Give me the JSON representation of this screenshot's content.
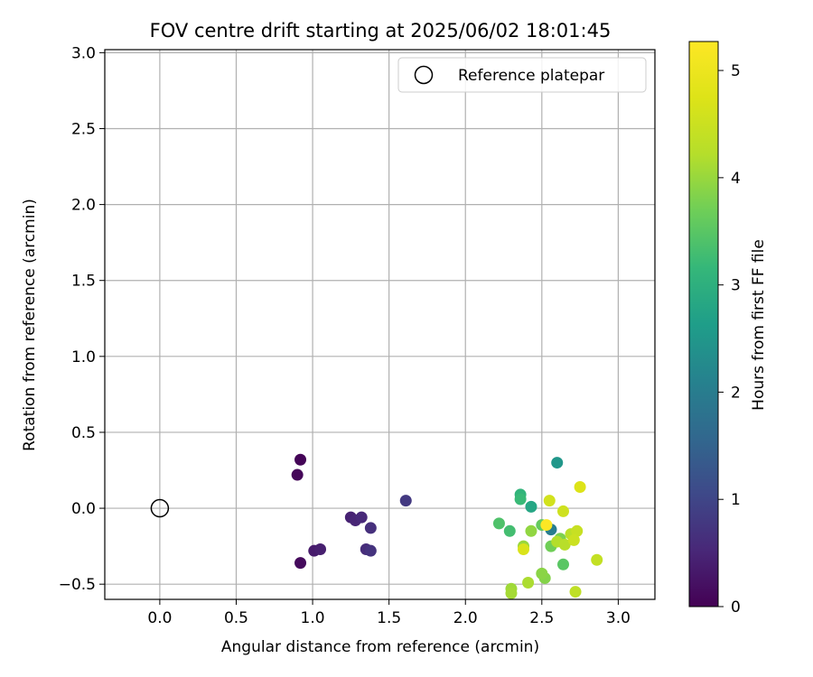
{
  "chart_data": {
    "type": "scatter",
    "title": "FOV centre drift starting at 2025/06/02 18:01:45",
    "xlabel": "Angular distance from reference (arcmin)",
    "ylabel": "Rotation from reference (arcmin)",
    "xlim": [
      -0.36,
      3.24
    ],
    "ylim": [
      -0.6,
      3.02
    ],
    "xticks": [
      "0.0",
      "0.5",
      "1.0",
      "1.5",
      "2.0",
      "2.5",
      "3.0"
    ],
    "yticks": [
      "−0.5",
      "0.0",
      "0.5",
      "1.0",
      "1.5",
      "2.0",
      "2.5",
      "3.0"
    ],
    "grid": true,
    "legend": {
      "placement": "upper-right",
      "label": "Reference platepar"
    },
    "reference_point": {
      "x": 0.0,
      "y": 0.0
    },
    "colorbar": {
      "label": "Hours from first FF file",
      "colormap": "viridis",
      "range": [
        0,
        5.27
      ],
      "ticks": [
        "0",
        "1",
        "2",
        "3",
        "4",
        "5"
      ]
    },
    "points": [
      {
        "x": 0.92,
        "y": 0.32,
        "hours": 0.05
      },
      {
        "x": 0.9,
        "y": 0.22,
        "hours": 0.08
      },
      {
        "x": 0.92,
        "y": -0.36,
        "hours": 0.12
      },
      {
        "x": 1.01,
        "y": -0.28,
        "hours": 0.35
      },
      {
        "x": 1.05,
        "y": -0.27,
        "hours": 0.4
      },
      {
        "x": 1.25,
        "y": -0.06,
        "hours": 0.45
      },
      {
        "x": 1.28,
        "y": -0.08,
        "hours": 0.5
      },
      {
        "x": 1.32,
        "y": -0.06,
        "hours": 0.55
      },
      {
        "x": 1.35,
        "y": -0.27,
        "hours": 0.6
      },
      {
        "x": 1.38,
        "y": -0.13,
        "hours": 0.65
      },
      {
        "x": 1.38,
        "y": -0.28,
        "hours": 0.7
      },
      {
        "x": 1.61,
        "y": 0.05,
        "hours": 0.8
      },
      {
        "x": 2.56,
        "y": -0.14,
        "hours": 2.0
      },
      {
        "x": 2.6,
        "y": 0.3,
        "hours": 2.5
      },
      {
        "x": 2.43,
        "y": 0.01,
        "hours": 2.8
      },
      {
        "x": 2.36,
        "y": 0.09,
        "hours": 3.1
      },
      {
        "x": 2.36,
        "y": 0.06,
        "hours": 3.2
      },
      {
        "x": 2.29,
        "y": -0.15,
        "hours": 3.3
      },
      {
        "x": 2.22,
        "y": -0.1,
        "hours": 3.4
      },
      {
        "x": 2.64,
        "y": -0.37,
        "hours": 3.5
      },
      {
        "x": 2.5,
        "y": -0.11,
        "hours": 3.6
      },
      {
        "x": 2.56,
        "y": -0.25,
        "hours": 3.7
      },
      {
        "x": 2.62,
        "y": -0.2,
        "hours": 3.8
      },
      {
        "x": 2.52,
        "y": -0.46,
        "hours": 3.85
      },
      {
        "x": 2.5,
        "y": -0.43,
        "hours": 3.9
      },
      {
        "x": 2.43,
        "y": -0.15,
        "hours": 3.95
      },
      {
        "x": 2.38,
        "y": -0.25,
        "hours": 4.0
      },
      {
        "x": 2.3,
        "y": -0.53,
        "hours": 4.05
      },
      {
        "x": 2.3,
        "y": -0.56,
        "hours": 4.1
      },
      {
        "x": 2.41,
        "y": -0.49,
        "hours": 4.15
      },
      {
        "x": 2.6,
        "y": -0.22,
        "hours": 4.2
      },
      {
        "x": 2.65,
        "y": -0.24,
        "hours": 4.25
      },
      {
        "x": 2.69,
        "y": -0.17,
        "hours": 4.3
      },
      {
        "x": 2.72,
        "y": -0.55,
        "hours": 4.35
      },
      {
        "x": 2.86,
        "y": -0.34,
        "hours": 4.4
      },
      {
        "x": 2.73,
        "y": -0.15,
        "hours": 4.45
      },
      {
        "x": 2.71,
        "y": -0.21,
        "hours": 4.5
      },
      {
        "x": 2.64,
        "y": -0.02,
        "hours": 4.55
      },
      {
        "x": 2.55,
        "y": 0.05,
        "hours": 4.6
      },
      {
        "x": 2.38,
        "y": -0.27,
        "hours": 4.7
      },
      {
        "x": 2.75,
        "y": 0.14,
        "hours": 4.75
      },
      {
        "x": 2.53,
        "y": -0.11,
        "hours": 5.25
      }
    ]
  }
}
